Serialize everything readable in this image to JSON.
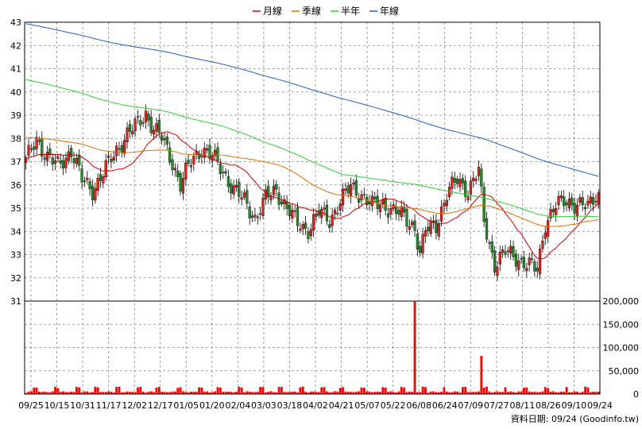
{
  "chart_data": {
    "type": "candlestick",
    "legend": [
      "月線",
      "季線",
      "半年",
      "年線"
    ],
    "colors": {
      "月線": "#cc0000",
      "季線": "#e07000",
      "半年": "#33cc33",
      "年線": "#1f5fc8",
      "up": "#e8231f",
      "down": "#2a8a2a",
      "volume": "#ff0000"
    },
    "price_ylim": [
      31,
      43
    ],
    "price_ticks": [
      "43",
      "42",
      "41",
      "40",
      "39",
      "38",
      "37",
      "36",
      "35",
      "34",
      "33",
      "32",
      "31"
    ],
    "volume_ylim": [
      0,
      200000
    ],
    "volume_ticks": [
      "200,000",
      "150,000",
      "100,000",
      "50,000",
      "0"
    ],
    "x_labels": [
      "09/25",
      "10/15",
      "10/31",
      "11/17",
      "12/02",
      "12/17",
      "01/05",
      "01/20",
      "02/04",
      "03/03",
      "03/18",
      "04/02",
      "04/21",
      "05/07",
      "05/22",
      "06/08",
      "06/24",
      "07/09",
      "07/27",
      "08/11",
      "08/26",
      "09/10",
      "09/24"
    ],
    "close_path": [
      [
        0,
        37.0
      ],
      [
        4,
        38.0
      ],
      [
        8,
        37.2
      ],
      [
        12,
        36.8
      ],
      [
        17,
        37.5
      ],
      [
        21,
        36.2
      ],
      [
        25,
        35.8
      ],
      [
        29,
        36.5
      ],
      [
        34,
        37.5
      ],
      [
        38,
        38.2
      ],
      [
        42,
        38.6
      ],
      [
        45,
        39.1
      ],
      [
        48,
        38.4
      ],
      [
        51,
        38.0
      ],
      [
        55,
        37.0
      ],
      [
        58,
        36.0
      ],
      [
        62,
        37.0
      ],
      [
        66,
        37.6
      ],
      [
        70,
        37.2
      ],
      [
        74,
        36.6
      ],
      [
        78,
        35.8
      ],
      [
        82,
        35.3
      ],
      [
        86,
        34.6
      ],
      [
        90,
        35.4
      ],
      [
        94,
        35.8
      ],
      [
        98,
        35.0
      ],
      [
        102,
        34.3
      ],
      [
        106,
        34.1
      ],
      [
        110,
        34.8
      ],
      [
        114,
        34.5
      ],
      [
        118,
        35.3
      ],
      [
        122,
        35.9
      ],
      [
        126,
        35.6
      ],
      [
        130,
        35.1
      ],
      [
        134,
        35.2
      ],
      [
        138,
        34.9
      ],
      [
        142,
        34.6
      ],
      [
        146,
        34.2
      ],
      [
        148,
        33.0
      ],
      [
        150,
        34.0
      ],
      [
        154,
        34.3
      ],
      [
        158,
        35.6
      ],
      [
        162,
        36.2
      ],
      [
        166,
        35.8
      ],
      [
        170,
        36.6
      ],
      [
        172,
        34.4
      ],
      [
        176,
        32.6
      ],
      [
        180,
        33.1
      ],
      [
        184,
        32.9
      ],
      [
        188,
        32.6
      ],
      [
        192,
        32.3
      ],
      [
        195,
        34.4
      ],
      [
        199,
        35.1
      ],
      [
        203,
        35.3
      ],
      [
        207,
        35.2
      ],
      [
        211,
        35.0
      ],
      [
        214,
        35.6
      ]
    ],
    "volume_spikes": [
      [
        146,
        200000
      ],
      [
        171,
        82000
      ]
    ]
  }
}
